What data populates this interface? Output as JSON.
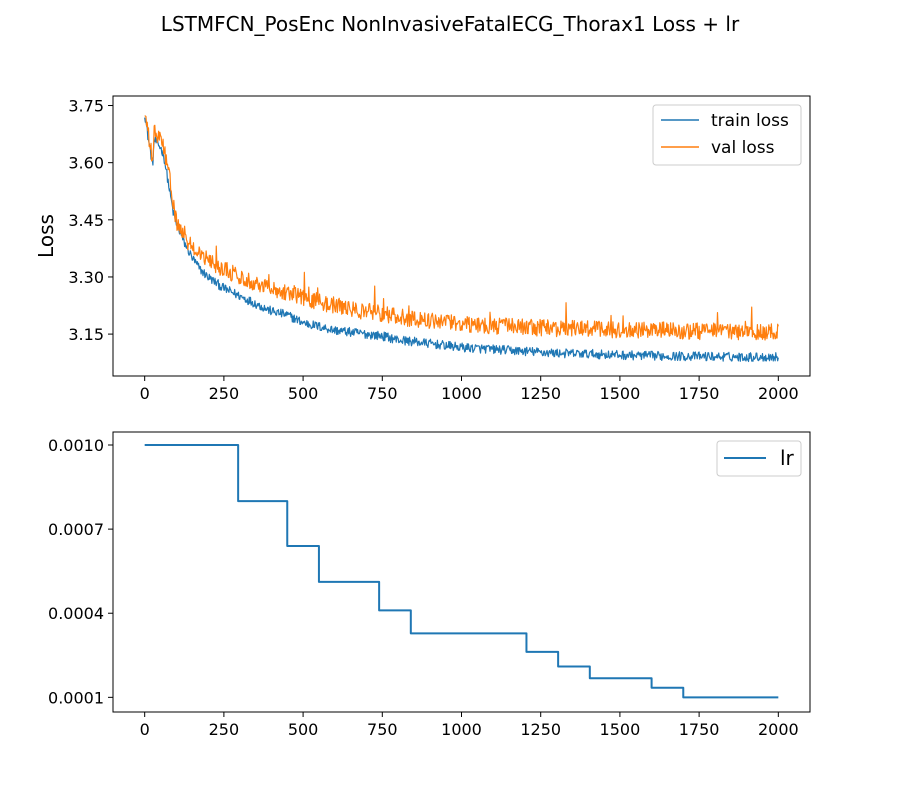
{
  "title": "LSTMFCN_PosEnc NonInvasiveFatalECG_Thorax1 Loss + lr",
  "colors": {
    "train": "#1f77b4",
    "val": "#ff7f0e",
    "lr": "#1f77b4",
    "axis": "#000000",
    "legend_border": "#cccccc"
  },
  "chart_data": [
    {
      "type": "line",
      "title": "LSTMFCN_PosEnc NonInvasiveFatalECG_Thorax1 Loss + lr",
      "xlabel": "",
      "ylabel": "Loss",
      "xlim": [
        -100,
        2100
      ],
      "ylim": [
        3.04,
        3.775
      ],
      "xticks": [
        0,
        250,
        500,
        750,
        1000,
        1250,
        1500,
        1750,
        2000
      ],
      "xtick_labels": [
        "0",
        "250",
        "500",
        "750",
        "1000",
        "1250",
        "1500",
        "1750",
        "2000"
      ],
      "yticks": [
        3.15,
        3.3,
        3.45,
        3.6,
        3.75
      ],
      "ytick_labels": [
        "3.15",
        "3.30",
        "3.45",
        "3.60",
        "3.75"
      ],
      "grid": false,
      "legend": "top-right",
      "series": [
        {
          "name": "train loss",
          "x": [
            0,
            10,
            20,
            25,
            30,
            40,
            50,
            60,
            70,
            80,
            90,
            100,
            110,
            125,
            150,
            175,
            200,
            250,
            300,
            350,
            400,
            450,
            500,
            550,
            600,
            650,
            700,
            750,
            800,
            850,
            900,
            950,
            1000,
            1100,
            1200,
            1300,
            1400,
            1500,
            1600,
            1700,
            1800,
            1900,
            2000
          ],
          "values": [
            3.73,
            3.67,
            3.62,
            3.59,
            3.66,
            3.65,
            3.64,
            3.62,
            3.57,
            3.52,
            3.47,
            3.44,
            3.42,
            3.39,
            3.35,
            3.32,
            3.3,
            3.27,
            3.25,
            3.23,
            3.21,
            3.2,
            3.18,
            3.17,
            3.16,
            3.155,
            3.15,
            3.145,
            3.135,
            3.13,
            3.125,
            3.12,
            3.115,
            3.11,
            3.105,
            3.1,
            3.098,
            3.095,
            3.093,
            3.092,
            3.091,
            3.09,
            3.09
          ],
          "noise": 0.012
        },
        {
          "name": "val loss",
          "x": [
            0,
            10,
            20,
            25,
            30,
            40,
            50,
            60,
            70,
            80,
            90,
            100,
            110,
            125,
            150,
            175,
            200,
            250,
            300,
            350,
            400,
            450,
            500,
            550,
            600,
            650,
            700,
            750,
            800,
            850,
            900,
            950,
            1000,
            1100,
            1200,
            1300,
            1400,
            1500,
            1600,
            1700,
            1800,
            1900,
            2000
          ],
          "values": [
            3.73,
            3.68,
            3.63,
            3.6,
            3.68,
            3.67,
            3.66,
            3.64,
            3.6,
            3.55,
            3.49,
            3.45,
            3.42,
            3.4,
            3.38,
            3.36,
            3.345,
            3.32,
            3.3,
            3.285,
            3.27,
            3.26,
            3.245,
            3.235,
            3.225,
            3.215,
            3.21,
            3.205,
            3.195,
            3.19,
            3.185,
            3.18,
            3.178,
            3.172,
            3.168,
            3.165,
            3.163,
            3.16,
            3.16,
            3.158,
            3.157,
            3.156,
            3.155
          ],
          "noise": 0.022
        }
      ]
    },
    {
      "type": "line",
      "xlabel": "",
      "ylabel": "",
      "xlim": [
        -100,
        2100
      ],
      "ylim": [
        4.77e-05,
        0.0010464
      ],
      "xticks": [
        0,
        250,
        500,
        750,
        1000,
        1250,
        1500,
        1750,
        2000
      ],
      "xtick_labels": [
        "0",
        "250",
        "500",
        "750",
        "1000",
        "1250",
        "1500",
        "1750",
        "2000"
      ],
      "yticks": [
        0.0001,
        0.0004,
        0.0007,
        0.001
      ],
      "ytick_labels": [
        "0.0001",
        "0.0004",
        "0.0007",
        "0.0010"
      ],
      "grid": false,
      "legend": "top-right",
      "series": [
        {
          "name": "lr",
          "step": true,
          "x": [
            0,
            295,
            295,
            450,
            450,
            550,
            550,
            740,
            740,
            840,
            840,
            1205,
            1205,
            1305,
            1305,
            1405,
            1405,
            1600,
            1600,
            1700,
            1700,
            2000
          ],
          "values": [
            0.001,
            0.001,
            0.0008,
            0.0008,
            0.00064,
            0.00064,
            0.000512,
            0.000512,
            0.00041,
            0.00041,
            0.000328,
            0.000328,
            0.000262,
            0.000262,
            0.00021,
            0.00021,
            0.000168,
            0.000168,
            0.000134,
            0.000134,
            0.0001,
            0.0001
          ]
        }
      ]
    }
  ]
}
